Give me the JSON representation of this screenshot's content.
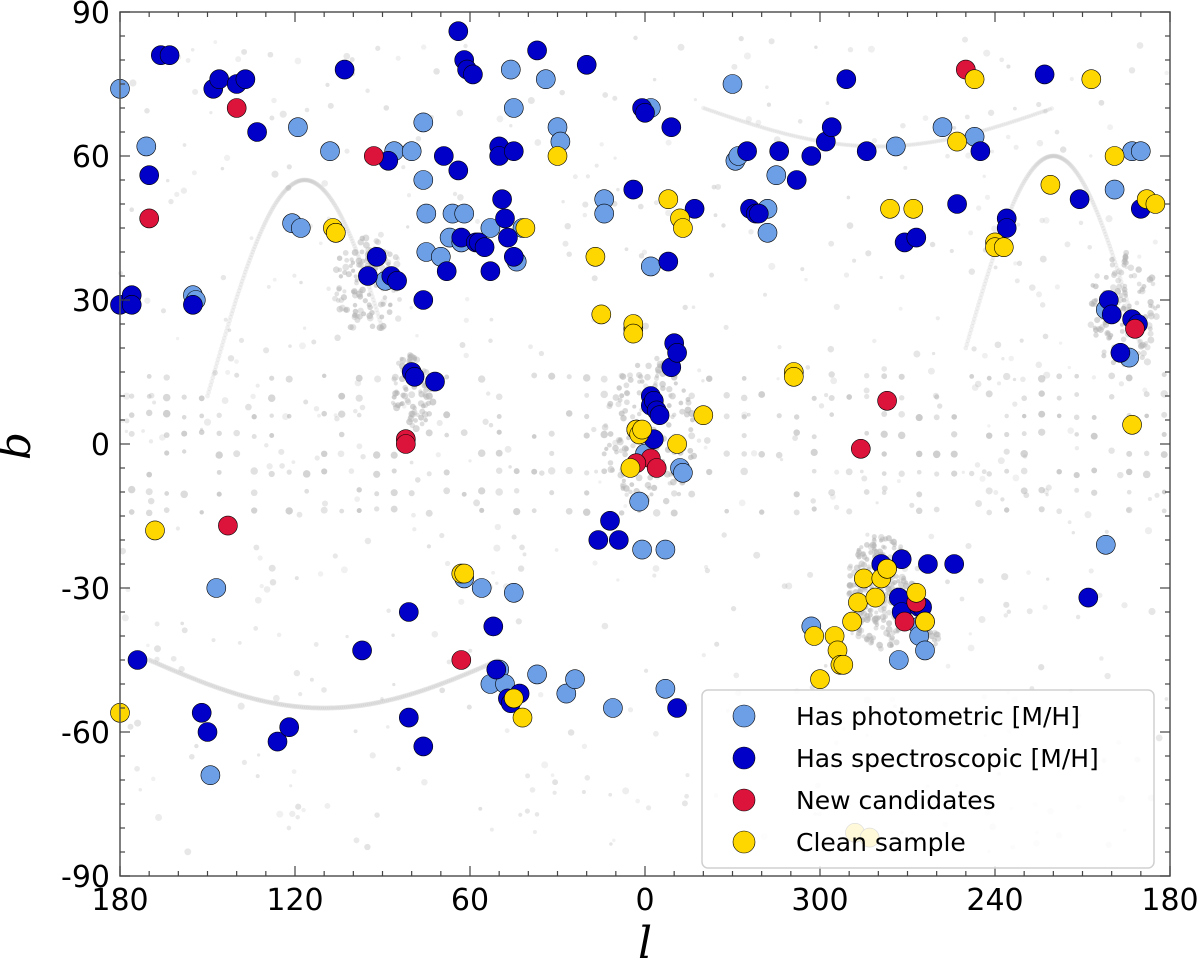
{
  "chart_data": {
    "type": "scatter",
    "title": "",
    "xlabel": "l",
    "ylabel": "b",
    "x_tick_labels": [
      "180",
      "120",
      "60",
      "0",
      "300",
      "240",
      "180"
    ],
    "x_tick_values_display": [
      180,
      120,
      60,
      0,
      -60,
      -120,
      -180
    ],
    "y_tick_labels": [
      "-90",
      "-60",
      "-30",
      "0",
      "30",
      "60",
      "90"
    ],
    "y_tick_values": [
      -90,
      -60,
      -30,
      0,
      30,
      60,
      90
    ],
    "xlim_display": [
      180,
      -180
    ],
    "ylim": [
      -90,
      90
    ],
    "legend_position": "lower-right",
    "background_footprint_color": "#b4b4b4",
    "series": [
      {
        "name": "Has photometric [M/H]",
        "color": "#6d9fe6",
        "points": [
          [
            180,
            74
          ],
          [
            171,
            62
          ],
          [
            155,
            31
          ],
          [
            154,
            30
          ],
          [
            147,
            -30
          ],
          [
            149,
            -69
          ],
          [
            121,
            46
          ],
          [
            119,
            66
          ],
          [
            118,
            45
          ],
          [
            108,
            61
          ],
          [
            89,
            34
          ],
          [
            86,
            61
          ],
          [
            80,
            61
          ],
          [
            76,
            67
          ],
          [
            76,
            55
          ],
          [
            75,
            48
          ],
          [
            75,
            40
          ],
          [
            70,
            39
          ],
          [
            67,
            43
          ],
          [
            66,
            48
          ],
          [
            63,
            42
          ],
          [
            62,
            48
          ],
          [
            62,
            -28
          ],
          [
            56,
            -30
          ],
          [
            53,
            45
          ],
          [
            53,
            -50
          ],
          [
            50,
            -47
          ],
          [
            48,
            -50
          ],
          [
            46,
            78
          ],
          [
            45,
            70
          ],
          [
            45,
            -31
          ],
          [
            44,
            38
          ],
          [
            42,
            45
          ],
          [
            37,
            -48
          ],
          [
            34,
            76
          ],
          [
            30,
            66
          ],
          [
            29,
            63
          ],
          [
            27,
            -52
          ],
          [
            24,
            -49
          ],
          [
            14,
            51
          ],
          [
            14,
            48
          ],
          [
            11,
            -55
          ],
          [
            2,
            -12
          ],
          [
            1,
            -22
          ],
          [
            0,
            -2
          ],
          [
            -2,
            70
          ],
          [
            -2,
            37
          ],
          [
            -7,
            -22
          ],
          [
            -7,
            -51
          ],
          [
            -12,
            -5
          ],
          [
            -13,
            -6
          ],
          [
            -30,
            75
          ],
          [
            -31,
            59
          ],
          [
            -32,
            60
          ],
          [
            -42,
            49
          ],
          [
            -42,
            44
          ],
          [
            -45,
            56
          ],
          [
            -57,
            -38
          ],
          [
            -86,
            62
          ],
          [
            -87,
            -45
          ],
          [
            -94,
            -38
          ],
          [
            -94,
            -40
          ],
          [
            -96,
            -43
          ],
          [
            -102,
            66
          ],
          [
            -113,
            64
          ],
          [
            -158,
            28
          ],
          [
            -158,
            -21
          ],
          [
            -161,
            53
          ],
          [
            -166,
            18
          ],
          [
            -167,
            61
          ],
          [
            -170,
            61
          ]
        ]
      },
      {
        "name": "Has spectroscopic [M/H]",
        "color": "#0000c8",
        "points": [
          [
            180,
            29
          ],
          [
            176,
            31
          ],
          [
            176,
            29
          ],
          [
            174,
            -45
          ],
          [
            170,
            56
          ],
          [
            166,
            81
          ],
          [
            163,
            81
          ],
          [
            155,
            29
          ],
          [
            152,
            -56
          ],
          [
            150,
            -60
          ],
          [
            148,
            74
          ],
          [
            146,
            76
          ],
          [
            140,
            75
          ],
          [
            137,
            76
          ],
          [
            133,
            65
          ],
          [
            126,
            -62
          ],
          [
            122,
            -59
          ],
          [
            103,
            78
          ],
          [
            97,
            -43
          ],
          [
            95,
            35
          ],
          [
            92,
            39
          ],
          [
            88,
            59
          ],
          [
            87,
            35
          ],
          [
            85,
            34
          ],
          [
            81,
            -35
          ],
          [
            81,
            -57
          ],
          [
            80,
            15
          ],
          [
            79,
            14
          ],
          [
            76,
            30
          ],
          [
            76,
            -63
          ],
          [
            72,
            13
          ],
          [
            69,
            60
          ],
          [
            68,
            36
          ],
          [
            64,
            57
          ],
          [
            63,
            43
          ],
          [
            64,
            86
          ],
          [
            62,
            80
          ],
          [
            61,
            78
          ],
          [
            59,
            77
          ],
          [
            58,
            42
          ],
          [
            57,
            42
          ],
          [
            55,
            41
          ],
          [
            53,
            36
          ],
          [
            52,
            -38
          ],
          [
            51,
            -47
          ],
          [
            50,
            62
          ],
          [
            50,
            60
          ],
          [
            49,
            51
          ],
          [
            48,
            47
          ],
          [
            47,
            43
          ],
          [
            47,
            -53
          ],
          [
            46,
            -54
          ],
          [
            45,
            61
          ],
          [
            45,
            39
          ],
          [
            43,
            -52
          ],
          [
            37,
            82
          ],
          [
            20,
            79
          ],
          [
            16,
            -20
          ],
          [
            12,
            -16
          ],
          [
            9,
            -20
          ],
          [
            4,
            53
          ],
          [
            1,
            70
          ],
          [
            0,
            69
          ],
          [
            -2,
            10
          ],
          [
            -2,
            8
          ],
          [
            -3,
            9
          ],
          [
            -4,
            7
          ],
          [
            -5,
            6
          ],
          [
            -3,
            1
          ],
          [
            -8,
            38
          ],
          [
            -9,
            66
          ],
          [
            -9,
            16
          ],
          [
            -10,
            21
          ],
          [
            -11,
            19
          ],
          [
            -11,
            -55
          ],
          [
            -17,
            49
          ],
          [
            -35,
            61
          ],
          [
            -36,
            49
          ],
          [
            -38,
            48
          ],
          [
            -39,
            48
          ],
          [
            -46,
            61
          ],
          [
            -52,
            55
          ],
          [
            -57,
            60
          ],
          [
            -62,
            63
          ],
          [
            -64,
            66
          ],
          [
            -69,
            76
          ],
          [
            -76,
            61
          ],
          [
            -81,
            -25
          ],
          [
            -87,
            -32
          ],
          [
            -88,
            -24
          ],
          [
            -88,
            -35
          ],
          [
            -89,
            42
          ],
          [
            -93,
            43
          ],
          [
            -94,
            -34
          ],
          [
            -95,
            -34
          ],
          [
            -97,
            -25
          ],
          [
            -106,
            -25
          ],
          [
            -107,
            50
          ],
          [
            -115,
            61
          ],
          [
            -124,
            47
          ],
          [
            -124,
            45
          ],
          [
            -137,
            77
          ],
          [
            -149,
            51
          ],
          [
            -152,
            -32
          ],
          [
            -159,
            30
          ],
          [
            -160,
            27
          ],
          [
            -163,
            19
          ],
          [
            -167,
            26
          ],
          [
            -169,
            25
          ],
          [
            -170,
            49
          ]
        ]
      },
      {
        "name": "New candidates",
        "color": "#dc143c",
        "points": [
          [
            170,
            47
          ],
          [
            143,
            -17
          ],
          [
            140,
            70
          ],
          [
            93,
            60
          ],
          [
            82,
            1
          ],
          [
            82,
            0
          ],
          [
            63,
            -45
          ],
          [
            3,
            3
          ],
          [
            -2,
            -3
          ],
          [
            -4,
            -5
          ],
          [
            3,
            -4
          ],
          [
            -74,
            -1
          ],
          [
            -83,
            9
          ],
          [
            -89,
            -37
          ],
          [
            -93,
            -33
          ],
          [
            -110,
            78
          ],
          [
            -168,
            24
          ]
        ]
      },
      {
        "name": "Clean sample",
        "color": "#ffd700",
        "points": [
          [
            180,
            -56
          ],
          [
            168,
            -18
          ],
          [
            107,
            45
          ],
          [
            106,
            44
          ],
          [
            106,
            44
          ],
          [
            63,
            -27
          ],
          [
            62,
            -27
          ],
          [
            45,
            -53
          ],
          [
            42,
            -57
          ],
          [
            41,
            45
          ],
          [
            30,
            60
          ],
          [
            17,
            39
          ],
          [
            15,
            27
          ],
          [
            5,
            -5
          ],
          [
            4,
            24
          ],
          [
            4,
            25
          ],
          [
            4,
            23
          ],
          [
            3,
            3
          ],
          [
            2,
            2
          ],
          [
            1,
            3
          ],
          [
            -8,
            51
          ],
          [
            -12,
            47
          ],
          [
            -13,
            45
          ],
          [
            -11,
            0
          ],
          [
            -20,
            6
          ],
          [
            -51,
            15
          ],
          [
            -51,
            14
          ],
          [
            -58,
            -40
          ],
          [
            -60,
            -49
          ],
          [
            -65,
            -40
          ],
          [
            -66,
            -43
          ],
          [
            -67,
            -46
          ],
          [
            -68,
            -46
          ],
          [
            -71,
            -37
          ],
          [
            -73,
            -33
          ],
          [
            -75,
            -28
          ],
          [
            -79,
            -32
          ],
          [
            -81,
            -28
          ],
          [
            -83,
            -26
          ],
          [
            -83,
            -26
          ],
          [
            -84,
            49
          ],
          [
            -92,
            49
          ],
          [
            -93,
            -31
          ],
          [
            -96,
            -37
          ],
          [
            -96,
            -37
          ],
          [
            -107,
            63
          ],
          [
            -113,
            76
          ],
          [
            -120,
            42
          ],
          [
            -120,
            41
          ],
          [
            -123,
            41
          ],
          [
            -139,
            54
          ],
          [
            -153,
            76
          ],
          [
            -161,
            60
          ],
          [
            -167,
            4
          ],
          [
            -172,
            51
          ],
          [
            -175,
            50
          ],
          [
            -72,
            -81
          ],
          [
            -77,
            -82
          ]
        ]
      }
    ]
  }
}
